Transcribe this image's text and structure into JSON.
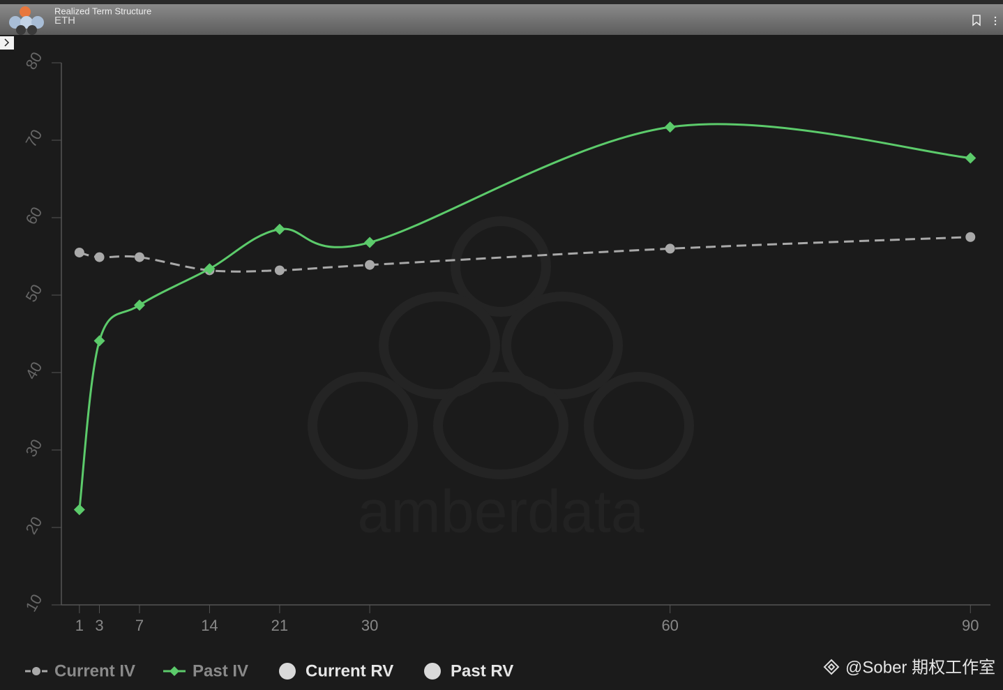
{
  "header": {
    "title": "Realized Term Structure",
    "subtitle": "ETH"
  },
  "chart_data": {
    "type": "line",
    "x": [
      1,
      3,
      7,
      14,
      21,
      30,
      60,
      90
    ],
    "xticks": [
      1,
      3,
      7,
      14,
      21,
      30,
      60,
      90
    ],
    "xlim": [
      -0.8,
      92
    ],
    "ylim": [
      10,
      80
    ],
    "yticks": [
      10,
      20,
      30,
      40,
      50,
      60,
      70,
      80
    ],
    "series": [
      {
        "name": "Current IV",
        "color": "#a9a9a9",
        "dashed": true,
        "marker": "circle",
        "values": [
          55.5,
          54.9,
          54.9,
          53.2,
          53.2,
          53.9,
          56.0,
          57.5
        ]
      },
      {
        "name": "Past IV",
        "color": "#5ccb6b",
        "dashed": false,
        "marker": "diamond",
        "values": [
          22.3,
          44.1,
          48.7,
          53.4,
          58.5,
          56.8,
          71.7,
          67.7
        ]
      },
      {
        "name": "Current RV",
        "color": "#d9d9d9",
        "dashed": false,
        "marker": "circle",
        "values": [
          null,
          null,
          null,
          null,
          null,
          null,
          null,
          null
        ]
      },
      {
        "name": "Past RV",
        "color": "#d9d9d9",
        "dashed": false,
        "marker": "circle",
        "values": [
          null,
          null,
          null,
          null,
          null,
          null,
          null,
          null
        ]
      }
    ],
    "watermark": "amberdata",
    "credit": "@Sober 期权工作室"
  }
}
